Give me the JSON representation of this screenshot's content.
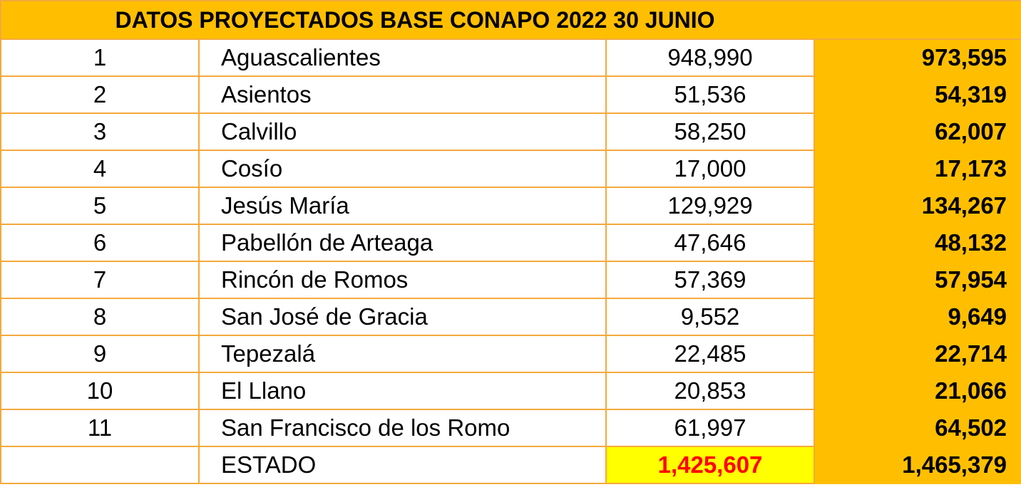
{
  "title": "DATOS PROYECTADOS BASE CONAPO 2022 30 JUNIO",
  "rows": [
    {
      "num": "1",
      "name": "Aguascalientes",
      "value": "948,990",
      "projected": "973,595"
    },
    {
      "num": "2",
      "name": "Asientos",
      "value": "51,536",
      "projected": "54,319"
    },
    {
      "num": "3",
      "name": "Calvillo",
      "value": "58,250",
      "projected": "62,007"
    },
    {
      "num": "4",
      "name": "Cosío",
      "value": "17,000",
      "projected": "17,173"
    },
    {
      "num": "5",
      "name": "Jesús María",
      "value": "129,929",
      "projected": "134,267"
    },
    {
      "num": "6",
      "name": "Pabellón de Arteaga",
      "value": "47,646",
      "projected": "48,132"
    },
    {
      "num": "7",
      "name": "Rincón de Romos",
      "value": "57,369",
      "projected": "57,954"
    },
    {
      "num": "8",
      "name": "San José de Gracia",
      "value": "9,552",
      "projected": "9,649"
    },
    {
      "num": "9",
      "name": "Tepezalá",
      "value": "22,485",
      "projected": "22,714"
    },
    {
      "num": "10",
      "name": "El Llano",
      "value": "20,853",
      "projected": "21,066"
    },
    {
      "num": "11",
      "name": "San Francisco de los Romo",
      "value": "61,997",
      "projected": "64,502"
    }
  ],
  "total": {
    "label": "ESTADO",
    "value": "1,425,607",
    "projected": "1,465,379"
  },
  "colors": {
    "header_fill": "#ffbf00",
    "grid_border": "#f4a93b",
    "total_highlight": "#ffff00",
    "total_text": "#ff0000"
  }
}
